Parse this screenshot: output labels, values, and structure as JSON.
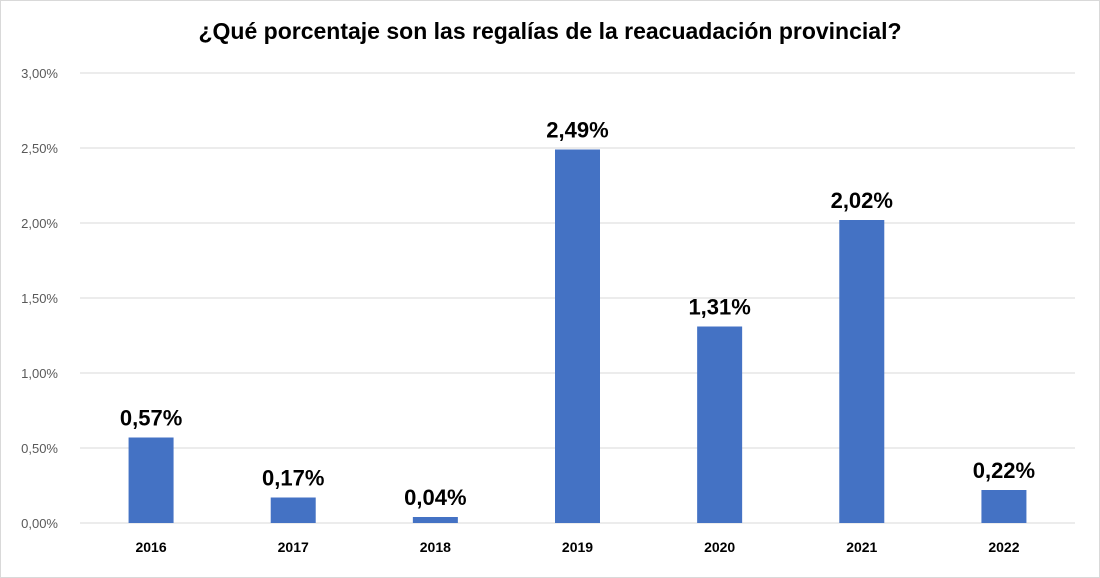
{
  "chart_data": {
    "type": "bar",
    "title": "¿Qué porcentaje son las regalías de la reacuadación provincial?",
    "xlabel": "",
    "ylabel": "",
    "categories": [
      "2016",
      "2017",
      "2018",
      "2019",
      "2020",
      "2021",
      "2022"
    ],
    "values": [
      0.57,
      0.17,
      0.04,
      2.49,
      1.31,
      2.02,
      0.22
    ],
    "data_labels": [
      "0,57%",
      "0,17%",
      "0,04%",
      "2,49%",
      "1,31%",
      "2,02%",
      "0,22%"
    ],
    "ylim": [
      0,
      3
    ],
    "y_ticks": [
      0,
      0.5,
      1,
      1.5,
      2,
      2.5,
      3
    ],
    "y_tick_labels": [
      "0,00%",
      "0,50%",
      "1,00%",
      "1,50%",
      "2,00%",
      "2,50%",
      "3,00%"
    ],
    "grid": true,
    "legend": "none",
    "bar_color": "#4472C4",
    "grid_color": "#d9d9d9"
  }
}
